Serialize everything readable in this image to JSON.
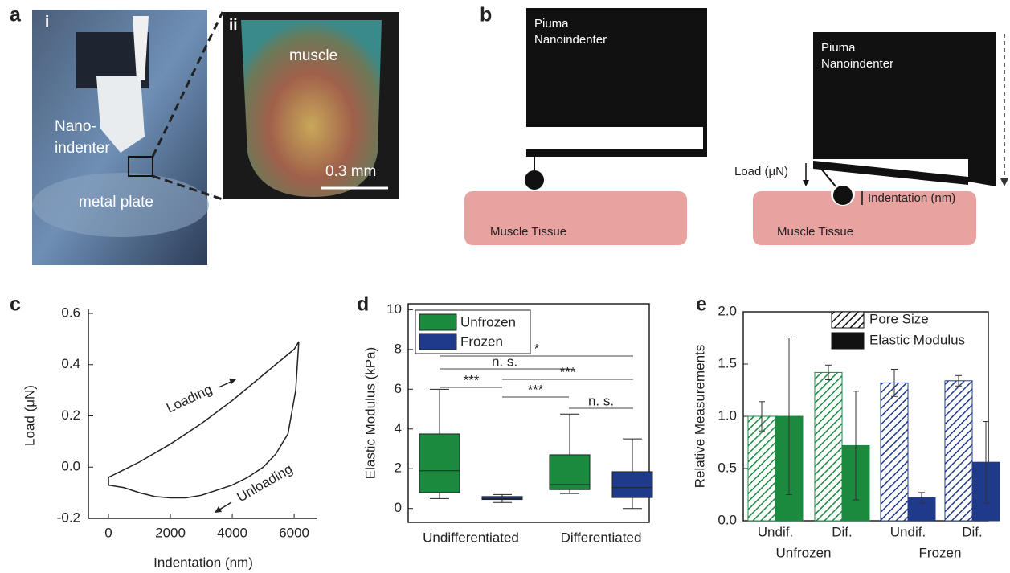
{
  "panel_labels": [
    "a",
    "b",
    "c",
    "d",
    "e"
  ],
  "panel_a": {
    "insets": [
      "i",
      "ii"
    ],
    "nanoindenter": [
      "Nano-",
      "indenter"
    ],
    "metal_plate": "metal plate",
    "muscle": "muscle",
    "scale_bar": "0.3 mm"
  },
  "panel_b": {
    "left": {
      "instrument": [
        "Piuma",
        "Nanoindenter"
      ],
      "tissue": "Muscle Tissue"
    },
    "right": {
      "instrument": [
        "Piuma",
        "Nanoindenter"
      ],
      "load": "Load (μN)",
      "indentation": "Indentation (nm)",
      "tissue": "Muscle Tissue"
    }
  },
  "chart_data": [
    {
      "type": "line",
      "x_label": "Indentation (nm)",
      "y_label": "Load (μN)",
      "color": "#222",
      "x": [
        0,
        500,
        1000,
        2000,
        3000,
        4000,
        5000,
        6000,
        6150,
        6050,
        5800,
        5400,
        5000,
        4500,
        4000,
        3500,
        3000,
        2500,
        2000,
        1500,
        1000,
        500,
        0,
        0
      ],
      "values": [
        -0.04,
        -0.01,
        0.02,
        0.09,
        0.17,
        0.26,
        0.36,
        0.46,
        0.49,
        0.3,
        0.13,
        0.05,
        0.0,
        -0.04,
        -0.07,
        -0.09,
        -0.11,
        -0.12,
        -0.12,
        -0.115,
        -0.1,
        -0.08,
        -0.07,
        -0.04
      ],
      "xlim": [
        -650,
        6750
      ],
      "xticks": [
        0,
        2000,
        4000,
        6000
      ],
      "ylim": [
        -0.2,
        0.6
      ],
      "yticks": [
        -0.2,
        {
          "value": 0,
          "label": "0.0"
        },
        0.2,
        0.4,
        0.6
      ],
      "annotations": [
        "Loading",
        "Unloading"
      ]
    },
    {
      "type": "box",
      "y_label": "Elastic Modulus (kPa)",
      "categories": [
        "Undifferentiated",
        "Differentiated"
      ],
      "series": [
        {
          "name": "Unfrozen",
          "color": "#1a8a3f",
          "boxes": [
            {
              "min": 0.5,
              "q1": 0.8,
              "median": 1.9,
              "q3": 3.75,
              "max": 6.0
            },
            {
              "min": 0.75,
              "q1": 0.95,
              "median": 1.2,
              "q3": 2.7,
              "max": 4.75
            }
          ]
        },
        {
          "name": "Frozen",
          "color": "#1f3a8a",
          "boxes": [
            {
              "min": 0.3,
              "q1": 0.45,
              "median": 0.5,
              "q3": 0.6,
              "max": 0.7
            },
            {
              "min": 0.0,
              "q1": 0.55,
              "median": 1.05,
              "q3": 1.85,
              "max": 3.5
            }
          ]
        }
      ],
      "ylim": [
        -0.7,
        10.3
      ],
      "yticks": [
        0,
        2,
        4,
        6,
        8,
        10
      ],
      "significance": [
        "*",
        "n. s.",
        "***",
        "***",
        "***",
        "n. s."
      ]
    },
    {
      "type": "bar",
      "y_label": "Relative Measurements",
      "categories": [
        "Undif.",
        "Dif.",
        "Undif.",
        "Dif."
      ],
      "groups": [
        "Unfrozen",
        "Frozen"
      ],
      "category_colors": [
        "#1a8a3f",
        "#1a8a3f",
        "#1f3a8a",
        "#1f3a8a"
      ],
      "series": [
        {
          "name": "Pore Size",
          "color": "#111",
          "hatched": true,
          "values": [
            1.0,
            1.42,
            1.32,
            1.34
          ],
          "errors": [
            0.14,
            0.07,
            0.13,
            0.05
          ]
        },
        {
          "name": "Elastic Modulus",
          "color": "#111",
          "hatched": false,
          "values": [
            1.0,
            0.72,
            0.22,
            0.56
          ],
          "errors": [
            0.75,
            0.52,
            0.05,
            0.39
          ]
        }
      ],
      "ylim": [
        0,
        2
      ],
      "yticks": [
        {
          "value": 0,
          "label": "0.0"
        },
        0.5,
        {
          "value": 1,
          "label": "1.0"
        },
        1.5,
        {
          "value": 2,
          "label": "2.0"
        }
      ]
    }
  ]
}
